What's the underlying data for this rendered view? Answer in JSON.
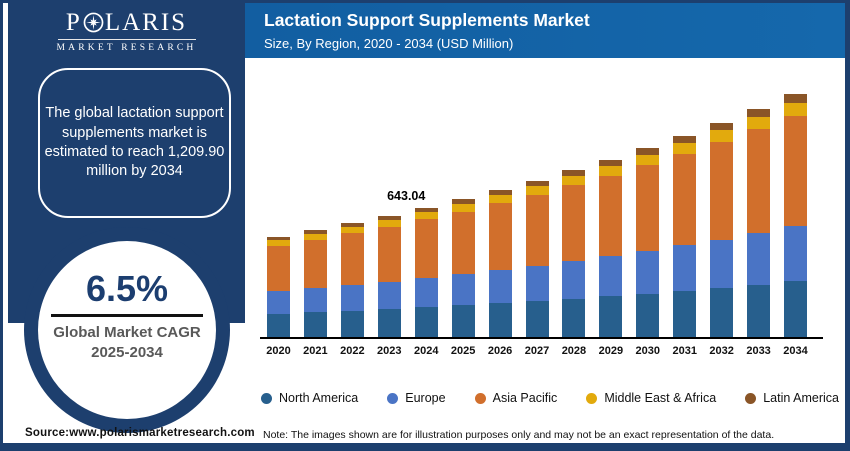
{
  "brand": {
    "name_prefix": "P",
    "name_suffix": "LARIS",
    "tagline": "MARKET RESEARCH"
  },
  "header": {
    "title": "Lactation Support Supplements Market",
    "subtitle": "Size, By Region, 2020 - 2034 (USD Million)"
  },
  "sidebar": {
    "highlight_text": "The global lactation support supplements market is estimated to reach 1,209.90 million by 2034",
    "cagr_value": "6.5%",
    "cagr_label": "Global Market CAGR",
    "cagr_period": "2025-2034"
  },
  "footer": {
    "source": "Source:www.polarismarketresearch.com",
    "note": "Note: The images shown are for illustration purposes only and may not be an exact representation of the data."
  },
  "colors": {
    "navy": "#1d3f6e",
    "header_blue": "#1568ac",
    "cagr_text": "#1c3e70",
    "cagr_sub_text": "#595959"
  },
  "chart_data": {
    "type": "bar",
    "stacked": true,
    "title": "Lactation Support Supplements Market",
    "subtitle": "Size, By Region, 2020 - 2034 (USD Million)",
    "ylabel": "USD Million",
    "grid": false,
    "legend_position": "bottom",
    "categories": [
      "2020",
      "2021",
      "2022",
      "2023",
      "2024",
      "2025",
      "2026",
      "2027",
      "2028",
      "2029",
      "2030",
      "2031",
      "2032",
      "2033",
      "2034"
    ],
    "series": [
      {
        "name": "North America",
        "color": "#275f8d",
        "values": [
          114.97,
          122.44,
          130.4,
          138.87,
          147.9,
          157.88,
          168.15,
          179.08,
          190.72,
          203.11,
          216.32,
          230.37,
          245.35,
          261.3,
          278.28
        ]
      },
      {
        "name": "Europe",
        "color": "#4a74c5",
        "values": [
          112.47,
          119.78,
          127.56,
          135.85,
          144.68,
          154.45,
          164.49,
          175.18,
          186.57,
          198.7,
          211.61,
          225.37,
          240.02,
          255.62,
          272.23
        ]
      },
      {
        "name": "Asia Pacific",
        "color": "#d16f2c",
        "values": [
          227.44,
          242.22,
          257.96,
          274.72,
          292.58,
          312.33,
          332.64,
          354.26,
          377.29,
          401.81,
          427.93,
          455.74,
          485.37,
          516.92,
          550.5
        ]
      },
      {
        "name": "Middle East & Africa",
        "color": "#e2aa0d",
        "values": [
          27.49,
          29.28,
          31.18,
          33.21,
          35.37,
          37.75,
          40.21,
          42.82,
          45.61,
          48.57,
          51.73,
          55.09,
          58.67,
          62.48,
          66.54
        ]
      },
      {
        "name": "Latin America",
        "color": "#8a5527",
        "values": [
          17.5,
          18.63,
          19.84,
          21.13,
          22.51,
          24.03,
          25.59,
          27.25,
          29.02,
          30.91,
          32.92,
          35.06,
          37.34,
          39.76,
          42.35
        ]
      }
    ],
    "totals": [
      499.86,
      532.35,
      566.95,
      603.79,
      643.04,
      686.45,
      731.07,
      778.59,
      829.2,
      883.1,
      940.5,
      1001.63,
      1066.74,
      1136.08,
      1209.9
    ],
    "annotation": {
      "category": "2024",
      "text": "643.04"
    },
    "cagr_2025_2034_pct": 6.5,
    "value_2034": 1209.9
  }
}
